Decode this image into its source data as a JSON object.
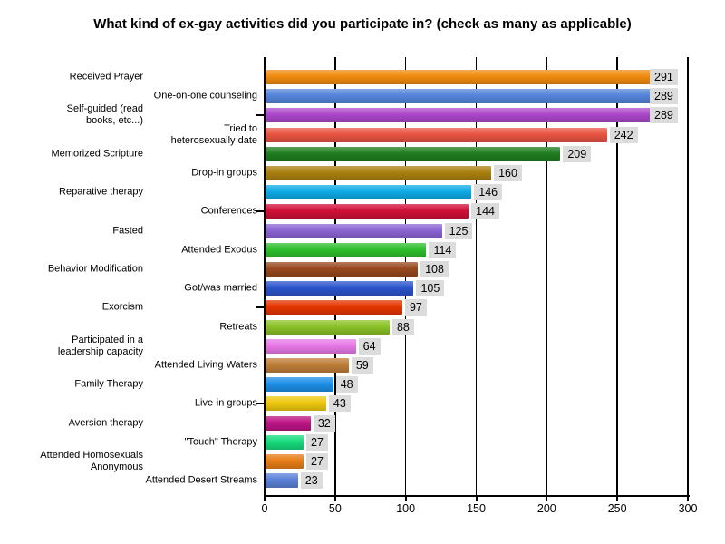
{
  "title": "What kind of ex-gay activities did you participate in? (check as many as applicable)",
  "chart_data": {
    "type": "bar",
    "orientation": "horizontal",
    "title": "What kind of ex-gay activities did you participate in? (check as many as applicable)",
    "categories": [
      "Received Prayer",
      "One-on-one counseling",
      "Self-guided (read\nbooks, etc...)",
      "Tried to\nheterosexually date",
      "Memorized Scripture",
      "Drop-in groups",
      "Reparative therapy",
      "Conferences",
      "Fasted",
      "Attended Exodus",
      "Behavior Modification",
      "Got/was married",
      "Exorcism",
      "Retreats",
      "Participated in a\nleadership capacity",
      "Attended Living Waters",
      "Family Therapy",
      "Live-in groups",
      "Aversion therapy",
      "\"Touch\" Therapy",
      "Attended Homosexuals\nAnonymous",
      "Attended Desert Streams"
    ],
    "values": [
      291,
      289,
      289,
      242,
      209,
      160,
      146,
      144,
      125,
      114,
      108,
      105,
      97,
      88,
      64,
      59,
      48,
      43,
      32,
      27,
      27,
      23
    ],
    "colors": [
      "#F08A0D",
      "#5584DB",
      "#AB47C9",
      "#E85340",
      "#1E7D1E",
      "#A9800F",
      "#0FAAE6",
      "#D11038",
      "#8B64D2",
      "#2DBE2D",
      "#98491E",
      "#2B54CC",
      "#E53500",
      "#8BC227",
      "#E878E8",
      "#BE7D38",
      "#1D8FE8",
      "#EEC90F",
      "#BD1584",
      "#16DB7C",
      "#E87D16",
      "#5A81D8"
    ],
    "value_label_bg": "#DCDCDC",
    "x_ticks": [
      0,
      50,
      100,
      150,
      200,
      250,
      300
    ],
    "xlim": [
      0,
      300
    ],
    "grid": true,
    "gridline_color": "#000000",
    "y_axis_tick_rows": [
      3,
      8,
      13,
      18
    ],
    "legend": "none"
  }
}
